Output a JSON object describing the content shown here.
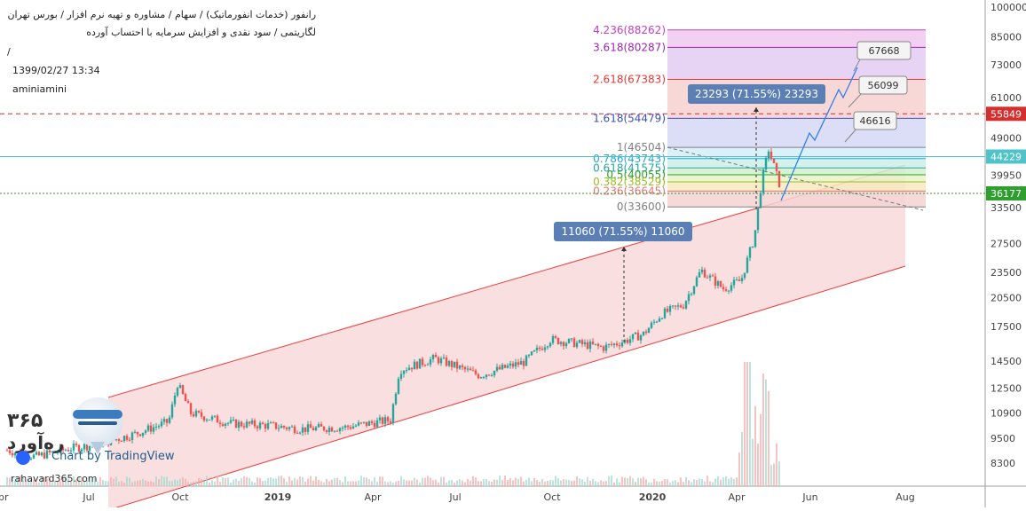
{
  "header": {
    "title_line1": "رانفور (خدمات انفورماتیک) / سهام / مشاوره و تهیه نرم افزار / بورس تهران",
    "title_line2": "لگاریتمی / سود نقدی و افزایش سرمایه با احتساب آورده",
    "title_line3": "/",
    "timestamp": "1399/02/27 13:34",
    "author": "aminiamini"
  },
  "logo": {
    "number": "۳۶۵",
    "name": "ره‌آورد",
    "site": "rahavard365.com",
    "tradingview": "Chart by TradingView",
    "icon": "rahavard-globe-icon"
  },
  "colors": {
    "up": "#26a69a",
    "down": "#ef5350",
    "channel_fill": "#f7d4d4",
    "channel_line": "#ef3b3b",
    "price_line_red": "#d32f2f",
    "price_line_teal": "#4fc3c7",
    "price_line_green": "#2e9f2e",
    "projection": "#2f80ed"
  },
  "chart_data": {
    "type": "candlestick",
    "scale": "log",
    "x_axis": {
      "labels": [
        "Apr",
        "Jul",
        "Oct",
        "2019",
        "Apr",
        "Jul",
        "Oct",
        "2020",
        "Apr",
        "Jun",
        "Aug"
      ]
    },
    "y_axis": {
      "labels": [
        "100000",
        "85000",
        "73000",
        "61000",
        "49000",
        "39950",
        "33500",
        "27500",
        "23500",
        "20500",
        "17500",
        "14500",
        "12500",
        "10900",
        "9500",
        "8300"
      ],
      "ylim": [
        7600,
        100000
      ],
      "price_tags": [
        {
          "value": "55849",
          "color": "#d32f2f"
        },
        {
          "value": "44229",
          "color": "#4fc3c7"
        },
        {
          "value": "36177",
          "color": "#2e9f2e"
        }
      ]
    },
    "fibonacci": [
      {
        "label": "4.236(88262)",
        "value": 88262,
        "color": "#c03fbf"
      },
      {
        "label": "3.618(80287)",
        "value": 80287,
        "color": "#9c27b0"
      },
      {
        "label": "2.618(67383)",
        "value": 67383,
        "color": "#e53935"
      },
      {
        "label": "1.618(54479)",
        "value": 54479,
        "color": "#3f51b5"
      },
      {
        "label": "1(46504)",
        "value": 46504,
        "color": "#808080"
      },
      {
        "label": "0.786(43743)",
        "value": 43743,
        "color": "#26a6d1"
      },
      {
        "label": "0.618(41575)",
        "value": 41575,
        "color": "#26a69a"
      },
      {
        "label": "0.5(40055)",
        "value": 40055,
        "color": "#2e9f2e"
      },
      {
        "label": "0.382(38529)",
        "value": 38529,
        "color": "#9bbf1f"
      },
      {
        "label": "0.236(36645)",
        "value": 36645,
        "color": "#e57373"
      },
      {
        "label": "0(33600)",
        "value": 33600,
        "color": "#808080"
      }
    ],
    "measure_labels": [
      "11060 (71.55%) 11060",
      "23293 (71.55%) 23293"
    ],
    "target_labels": [
      "67668",
      "56099",
      "46616"
    ],
    "volume": "shown as bars at bottom"
  }
}
